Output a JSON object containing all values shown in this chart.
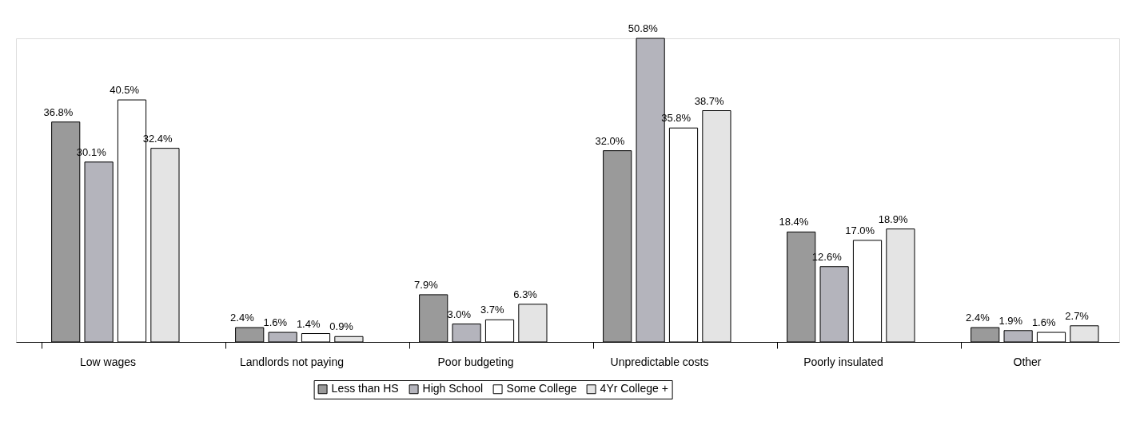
{
  "chart_data": {
    "type": "bar",
    "categories": [
      "Low wages",
      "Landlords not paying",
      "Poor budgeting",
      "Unpredictable costs",
      "Poorly insulated",
      "Other"
    ],
    "series": [
      {
        "name": "Less than HS",
        "color": "#9a9a9a",
        "values": [
          36.8,
          2.4,
          7.9,
          32.0,
          18.4,
          2.4
        ],
        "value_labels": [
          "36.8%",
          "2.4%",
          "7.9%",
          "32.0%",
          "18.4%",
          "2.4%"
        ]
      },
      {
        "name": "High School",
        "color": "#b4b4bc",
        "values": [
          30.1,
          1.6,
          3.0,
          50.8,
          12.6,
          1.9
        ],
        "value_labels": [
          "30.1%",
          "1.6%",
          "3.0%",
          "50.8%",
          "12.6%",
          "1.9%"
        ]
      },
      {
        "name": "Some College",
        "color": "#ffffff",
        "values": [
          40.5,
          1.4,
          3.7,
          35.8,
          17.0,
          1.6
        ],
        "value_labels": [
          "40.5%",
          "1.4%",
          "3.7%",
          "35.8%",
          "17.0%",
          "1.6%"
        ]
      },
      {
        "name": "4Yr College +",
        "color": "#e4e4e4",
        "values": [
          32.4,
          0.9,
          6.3,
          38.7,
          18.9,
          2.7
        ],
        "value_labels": [
          "32.4%",
          "0.9%",
          "6.3%",
          "38.7%",
          "18.9%",
          "2.7%"
        ]
      }
    ],
    "legend": "bottom",
    "grid": false,
    "tick_labels": "x"
  }
}
